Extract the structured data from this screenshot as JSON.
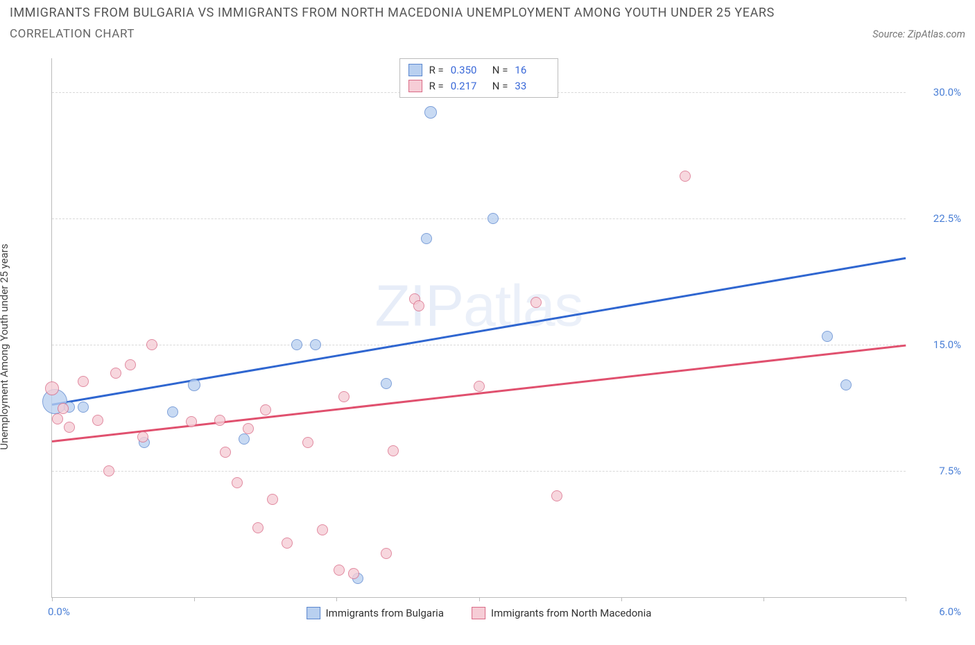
{
  "title": "IMMIGRANTS FROM BULGARIA VS IMMIGRANTS FROM NORTH MACEDONIA UNEMPLOYMENT AMONG YOUTH UNDER 25 YEARS",
  "subtitle": "CORRELATION CHART",
  "source_label": "Source: ZipAtlas.com",
  "y_axis_label": "Unemployment Among Youth under 25 years",
  "watermark_a": "ZIP",
  "watermark_b": "atlas",
  "chart": {
    "type": "scatter",
    "xlim": [
      0.0,
      6.0
    ],
    "ylim": [
      0.0,
      32.0
    ],
    "x_start_label": "0.0%",
    "x_end_label": "6.0%",
    "y_ticks": [
      7.5,
      15.0,
      22.5,
      30.0
    ],
    "y_tick_labels": [
      "7.5%",
      "15.0%",
      "22.5%",
      "30.0%"
    ],
    "x_tick_positions": [
      0.0,
      1.0,
      2.0,
      3.0,
      4.0,
      5.0,
      6.0
    ],
    "grid_color": "#d8d8d8",
    "background_color": "#ffffff",
    "series": [
      {
        "name": "Immigrants from Bulgaria",
        "fill": "#b9d0f0",
        "stroke": "#5a86cf",
        "line_color": "#2f66d0",
        "R_label": "R =",
        "R": "0.350",
        "N_label": "N =",
        "N": "16",
        "trend": {
          "x1": 0.0,
          "y1": 11.5,
          "x2": 6.0,
          "y2": 20.2
        },
        "points": [
          {
            "x": 0.02,
            "y": 11.6,
            "r": 18
          },
          {
            "x": 0.12,
            "y": 11.3,
            "r": 8
          },
          {
            "x": 0.22,
            "y": 11.3,
            "r": 8
          },
          {
            "x": 0.65,
            "y": 9.2,
            "r": 8
          },
          {
            "x": 0.85,
            "y": 11.0,
            "r": 8
          },
          {
            "x": 1.0,
            "y": 12.6,
            "r": 9
          },
          {
            "x": 1.35,
            "y": 9.4,
            "r": 8
          },
          {
            "x": 1.72,
            "y": 15.0,
            "r": 8
          },
          {
            "x": 1.85,
            "y": 15.0,
            "r": 8
          },
          {
            "x": 2.15,
            "y": 1.1,
            "r": 8
          },
          {
            "x": 2.35,
            "y": 12.7,
            "r": 8
          },
          {
            "x": 2.63,
            "y": 21.3,
            "r": 8
          },
          {
            "x": 2.66,
            "y": 28.8,
            "r": 9
          },
          {
            "x": 3.1,
            "y": 22.5,
            "r": 8
          },
          {
            "x": 5.45,
            "y": 15.5,
            "r": 8
          },
          {
            "x": 5.58,
            "y": 12.6,
            "r": 8
          }
        ]
      },
      {
        "name": "Immigrants from North Macedonia",
        "fill": "#f6cdd6",
        "stroke": "#d96a86",
        "line_color": "#e0506e",
        "R_label": "R =",
        "R": "0.217",
        "N_label": "N =",
        "N": "33",
        "trend": {
          "x1": 0.0,
          "y1": 9.3,
          "x2": 6.0,
          "y2": 15.0
        },
        "points": [
          {
            "x": 0.0,
            "y": 12.4,
            "r": 10
          },
          {
            "x": 0.04,
            "y": 10.6,
            "r": 8
          },
          {
            "x": 0.08,
            "y": 11.2,
            "r": 8
          },
          {
            "x": 0.12,
            "y": 10.1,
            "r": 8
          },
          {
            "x": 0.22,
            "y": 12.8,
            "r": 8
          },
          {
            "x": 0.32,
            "y": 10.5,
            "r": 8
          },
          {
            "x": 0.4,
            "y": 7.5,
            "r": 8
          },
          {
            "x": 0.45,
            "y": 13.3,
            "r": 8
          },
          {
            "x": 0.55,
            "y": 13.8,
            "r": 8
          },
          {
            "x": 0.64,
            "y": 9.5,
            "r": 8
          },
          {
            "x": 0.7,
            "y": 15.0,
            "r": 8
          },
          {
            "x": 0.98,
            "y": 10.4,
            "r": 8
          },
          {
            "x": 1.18,
            "y": 10.5,
            "r": 8
          },
          {
            "x": 1.22,
            "y": 8.6,
            "r": 8
          },
          {
            "x": 1.3,
            "y": 6.8,
            "r": 8
          },
          {
            "x": 1.38,
            "y": 10.0,
            "r": 8
          },
          {
            "x": 1.45,
            "y": 4.1,
            "r": 8
          },
          {
            "x": 1.5,
            "y": 11.1,
            "r": 8
          },
          {
            "x": 1.55,
            "y": 5.8,
            "r": 8
          },
          {
            "x": 1.65,
            "y": 3.2,
            "r": 8
          },
          {
            "x": 1.8,
            "y": 9.2,
            "r": 8
          },
          {
            "x": 1.9,
            "y": 4.0,
            "r": 8
          },
          {
            "x": 2.02,
            "y": 1.6,
            "r": 8
          },
          {
            "x": 2.05,
            "y": 11.9,
            "r": 8
          },
          {
            "x": 2.12,
            "y": 1.4,
            "r": 8
          },
          {
            "x": 2.35,
            "y": 2.6,
            "r": 8
          },
          {
            "x": 2.4,
            "y": 8.7,
            "r": 8
          },
          {
            "x": 2.55,
            "y": 17.7,
            "r": 8
          },
          {
            "x": 2.58,
            "y": 17.3,
            "r": 8
          },
          {
            "x": 3.0,
            "y": 12.5,
            "r": 8
          },
          {
            "x": 3.4,
            "y": 17.5,
            "r": 8
          },
          {
            "x": 3.55,
            "y": 6.0,
            "r": 8
          },
          {
            "x": 4.45,
            "y": 25.0,
            "r": 8
          }
        ]
      }
    ],
    "legend_bottom": [
      {
        "label": "Immigrants from Bulgaria",
        "fill": "#b9d0f0",
        "stroke": "#5a86cf"
      },
      {
        "label": "Immigrants from North Macedonia",
        "fill": "#f6cdd6",
        "stroke": "#d96a86"
      }
    ]
  }
}
